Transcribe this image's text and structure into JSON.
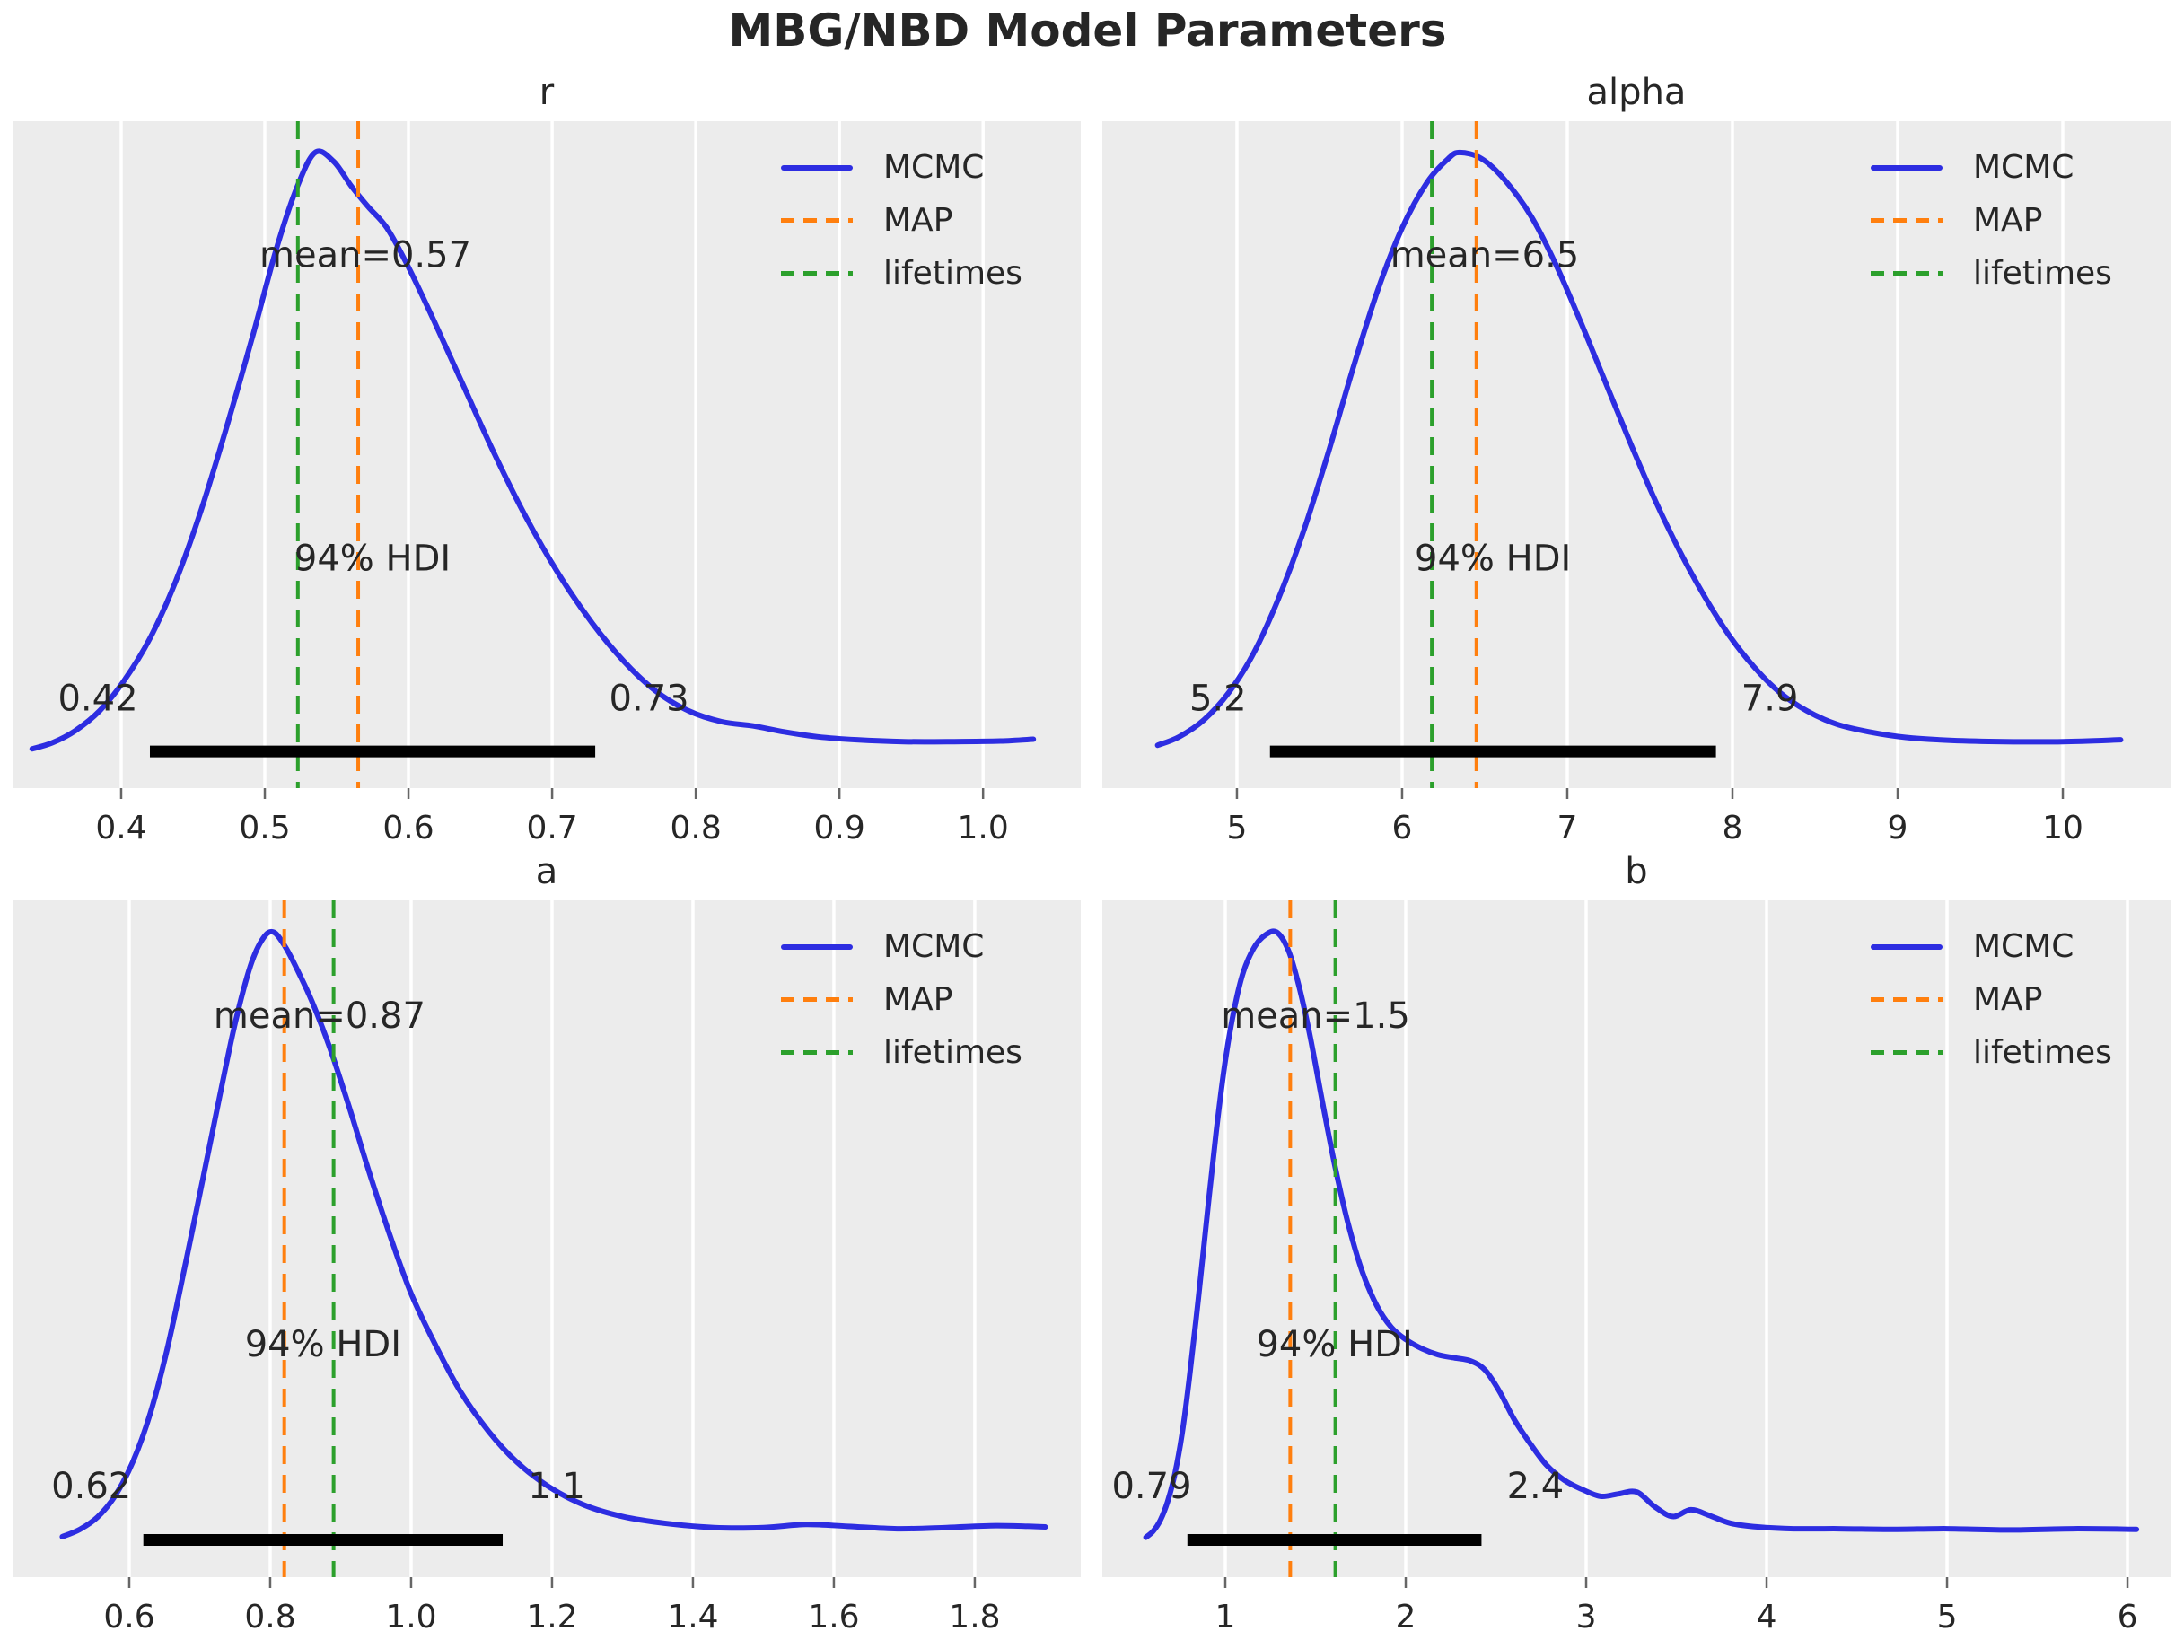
{
  "figure": {
    "title": "MBG/NBD Model Parameters"
  },
  "colors": {
    "mcmc": "#2d2de1",
    "map": "#ff7f0e",
    "lifetimes": "#2ca02c",
    "axes_bg": "#ececec",
    "grid": "#ffffff",
    "text": "#262626",
    "hdi_bar": "#000000",
    "tick_mark": "#666666"
  },
  "legend": [
    {
      "name": "MCMC",
      "style": "solid",
      "color_key": "mcmc"
    },
    {
      "name": "MAP",
      "style": "dashed",
      "color_key": "map"
    },
    {
      "name": "lifetimes",
      "style": "dashed",
      "color_key": "lifetimes"
    }
  ],
  "chart_data": [
    {
      "type": "line",
      "kind": "kde-density",
      "title": "r",
      "x_range": [
        0.3244,
        1.068
      ],
      "x_ticks": [
        {
          "v": 0.4,
          "label": "0.4"
        },
        {
          "v": 0.5,
          "label": "0.5"
        },
        {
          "v": 0.6,
          "label": "0.6"
        },
        {
          "v": 0.7,
          "label": "0.7"
        },
        {
          "v": 0.8,
          "label": "0.8"
        },
        {
          "v": 0.9,
          "label": "0.9"
        },
        {
          "v": 1.0,
          "label": "1.0"
        }
      ],
      "mean": 0.57,
      "mean_label": "mean=0.57",
      "map_x": 0.565,
      "lifetimes_x": 0.523,
      "hdi": {
        "label": "94% HDI",
        "low": 0.42,
        "high": 0.73,
        "low_label": "0.42",
        "high_label": "0.73"
      },
      "curve": [
        [
          0.338,
          0.012
        ],
        [
          0.352,
          0.022
        ],
        [
          0.368,
          0.042
        ],
        [
          0.385,
          0.075
        ],
        [
          0.402,
          0.125
        ],
        [
          0.42,
          0.195
        ],
        [
          0.438,
          0.29
        ],
        [
          0.456,
          0.41
        ],
        [
          0.474,
          0.55
        ],
        [
          0.492,
          0.7
        ],
        [
          0.508,
          0.84
        ],
        [
          0.522,
          0.94
        ],
        [
          0.535,
          1.0
        ],
        [
          0.548,
          0.985
        ],
        [
          0.56,
          0.945
        ],
        [
          0.572,
          0.91
        ],
        [
          0.585,
          0.875
        ],
        [
          0.6,
          0.81
        ],
        [
          0.618,
          0.72
        ],
        [
          0.638,
          0.615
        ],
        [
          0.66,
          0.5
        ],
        [
          0.682,
          0.395
        ],
        [
          0.705,
          0.3
        ],
        [
          0.728,
          0.22
        ],
        [
          0.75,
          0.157
        ],
        [
          0.772,
          0.108
        ],
        [
          0.795,
          0.075
        ],
        [
          0.818,
          0.057
        ],
        [
          0.84,
          0.05
        ],
        [
          0.862,
          0.04
        ],
        [
          0.885,
          0.032
        ],
        [
          0.912,
          0.027
        ],
        [
          0.945,
          0.024
        ],
        [
          0.98,
          0.024
        ],
        [
          1.012,
          0.025
        ],
        [
          1.035,
          0.028
        ]
      ]
    },
    {
      "type": "line",
      "kind": "kde-density",
      "title": "alpha",
      "x_range": [
        4.185,
        10.652
      ],
      "x_ticks": [
        {
          "v": 5,
          "label": "5"
        },
        {
          "v": 6,
          "label": "6"
        },
        {
          "v": 7,
          "label": "7"
        },
        {
          "v": 8,
          "label": "8"
        },
        {
          "v": 9,
          "label": "9"
        },
        {
          "v": 10,
          "label": "10"
        }
      ],
      "mean": 6.5,
      "mean_label": "mean=6.5",
      "map_x": 6.45,
      "lifetimes_x": 6.18,
      "hdi": {
        "label": "94% HDI",
        "low": 5.2,
        "high": 7.9,
        "low_label": "5.2",
        "high_label": "7.9"
      },
      "curve": [
        [
          4.52,
          0.018
        ],
        [
          4.65,
          0.032
        ],
        [
          4.8,
          0.06
        ],
        [
          4.95,
          0.105
        ],
        [
          5.1,
          0.17
        ],
        [
          5.25,
          0.26
        ],
        [
          5.4,
          0.37
        ],
        [
          5.55,
          0.5
        ],
        [
          5.7,
          0.64
        ],
        [
          5.85,
          0.77
        ],
        [
          6.0,
          0.875
        ],
        [
          6.15,
          0.95
        ],
        [
          6.28,
          0.99
        ],
        [
          6.35,
          1.0
        ],
        [
          6.48,
          0.99
        ],
        [
          6.62,
          0.955
        ],
        [
          6.78,
          0.895
        ],
        [
          6.93,
          0.815
        ],
        [
          7.08,
          0.72
        ],
        [
          7.23,
          0.62
        ],
        [
          7.38,
          0.52
        ],
        [
          7.53,
          0.425
        ],
        [
          7.68,
          0.34
        ],
        [
          7.83,
          0.265
        ],
        [
          7.98,
          0.2
        ],
        [
          8.13,
          0.148
        ],
        [
          8.28,
          0.107
        ],
        [
          8.45,
          0.075
        ],
        [
          8.63,
          0.053
        ],
        [
          8.83,
          0.04
        ],
        [
          9.05,
          0.031
        ],
        [
          9.33,
          0.026
        ],
        [
          9.65,
          0.024
        ],
        [
          10.0,
          0.024
        ],
        [
          10.35,
          0.027
        ]
      ]
    },
    {
      "type": "line",
      "kind": "kde-density",
      "title": "a",
      "x_range": [
        0.4344,
        1.9504
      ],
      "x_ticks": [
        {
          "v": 0.6,
          "label": "0.6"
        },
        {
          "v": 0.8,
          "label": "0.8"
        },
        {
          "v": 1.0,
          "label": "1.0"
        },
        {
          "v": 1.2,
          "label": "1.2"
        },
        {
          "v": 1.4,
          "label": "1.4"
        },
        {
          "v": 1.6,
          "label": "1.6"
        },
        {
          "v": 1.8,
          "label": "1.8"
        }
      ],
      "mean": 0.87,
      "mean_label": "mean=0.87",
      "map_x": 0.82,
      "lifetimes_x": 0.89,
      "hdi": {
        "label": "94% HDI",
        "low": 0.62,
        "high": 1.13,
        "low_label": "0.62",
        "high_label": "1.1"
      },
      "curve": [
        [
          0.505,
          0.013
        ],
        [
          0.53,
          0.025
        ],
        [
          0.555,
          0.045
        ],
        [
          0.58,
          0.08
        ],
        [
          0.605,
          0.135
        ],
        [
          0.63,
          0.215
        ],
        [
          0.655,
          0.325
        ],
        [
          0.68,
          0.46
        ],
        [
          0.705,
          0.6
        ],
        [
          0.728,
          0.73
        ],
        [
          0.75,
          0.85
        ],
        [
          0.772,
          0.945
        ],
        [
          0.79,
          0.99
        ],
        [
          0.805,
          1.0
        ],
        [
          0.822,
          0.975
        ],
        [
          0.84,
          0.935
        ],
        [
          0.86,
          0.885
        ],
        [
          0.885,
          0.81
        ],
        [
          0.912,
          0.715
        ],
        [
          0.94,
          0.61
        ],
        [
          0.97,
          0.505
        ],
        [
          1.0,
          0.41
        ],
        [
          1.035,
          0.325
        ],
        [
          1.07,
          0.25
        ],
        [
          1.11,
          0.185
        ],
        [
          1.15,
          0.135
        ],
        [
          1.195,
          0.095
        ],
        [
          1.245,
          0.065
        ],
        [
          1.3,
          0.046
        ],
        [
          1.36,
          0.035
        ],
        [
          1.43,
          0.028
        ],
        [
          1.5,
          0.028
        ],
        [
          1.56,
          0.033
        ],
        [
          1.62,
          0.03
        ],
        [
          1.69,
          0.026
        ],
        [
          1.76,
          0.028
        ],
        [
          1.83,
          0.031
        ],
        [
          1.9,
          0.029
        ]
      ]
    },
    {
      "type": "line",
      "kind": "kde-density",
      "title": "b",
      "x_range": [
        0.3184,
        6.2386
      ],
      "x_ticks": [
        {
          "v": 1,
          "label": "1"
        },
        {
          "v": 2,
          "label": "2"
        },
        {
          "v": 3,
          "label": "3"
        },
        {
          "v": 4,
          "label": "4"
        },
        {
          "v": 5,
          "label": "5"
        },
        {
          "v": 6,
          "label": "6"
        }
      ],
      "mean": 1.5,
      "mean_label": "mean=1.5",
      "map_x": 1.36,
      "lifetimes_x": 1.61,
      "hdi": {
        "label": "94% HDI",
        "low": 0.79,
        "high": 2.42,
        "low_label": "0.79",
        "high_label": "2.4"
      },
      "curve": [
        [
          0.56,
          0.012
        ],
        [
          0.6,
          0.022
        ],
        [
          0.64,
          0.04
        ],
        [
          0.68,
          0.07
        ],
        [
          0.72,
          0.115
        ],
        [
          0.76,
          0.18
        ],
        [
          0.8,
          0.27
        ],
        [
          0.85,
          0.4
        ],
        [
          0.9,
          0.54
        ],
        [
          0.95,
          0.675
        ],
        [
          1.0,
          0.79
        ],
        [
          1.05,
          0.875
        ],
        [
          1.1,
          0.935
        ],
        [
          1.16,
          0.975
        ],
        [
          1.22,
          0.995
        ],
        [
          1.285,
          1.0
        ],
        [
          1.35,
          0.97
        ],
        [
          1.41,
          0.91
        ],
        [
          1.47,
          0.83
        ],
        [
          1.54,
          0.72
        ],
        [
          1.61,
          0.615
        ],
        [
          1.68,
          0.525
        ],
        [
          1.76,
          0.445
        ],
        [
          1.84,
          0.39
        ],
        [
          1.92,
          0.355
        ],
        [
          2.0,
          0.335
        ],
        [
          2.09,
          0.32
        ],
        [
          2.18,
          0.31
        ],
        [
          2.27,
          0.305
        ],
        [
          2.36,
          0.3
        ],
        [
          2.44,
          0.285
        ],
        [
          2.52,
          0.25
        ],
        [
          2.6,
          0.205
        ],
        [
          2.69,
          0.165
        ],
        [
          2.78,
          0.13
        ],
        [
          2.88,
          0.105
        ],
        [
          2.98,
          0.09
        ],
        [
          3.08,
          0.079
        ],
        [
          3.18,
          0.083
        ],
        [
          3.28,
          0.086
        ],
        [
          3.38,
          0.062
        ],
        [
          3.48,
          0.046
        ],
        [
          3.58,
          0.057
        ],
        [
          3.68,
          0.048
        ],
        [
          3.8,
          0.035
        ],
        [
          3.95,
          0.029
        ],
        [
          4.15,
          0.026
        ],
        [
          4.4,
          0.026
        ],
        [
          4.7,
          0.025
        ],
        [
          5.0,
          0.026
        ],
        [
          5.35,
          0.024
        ],
        [
          5.7,
          0.026
        ],
        [
          6.05,
          0.025
        ]
      ]
    }
  ]
}
